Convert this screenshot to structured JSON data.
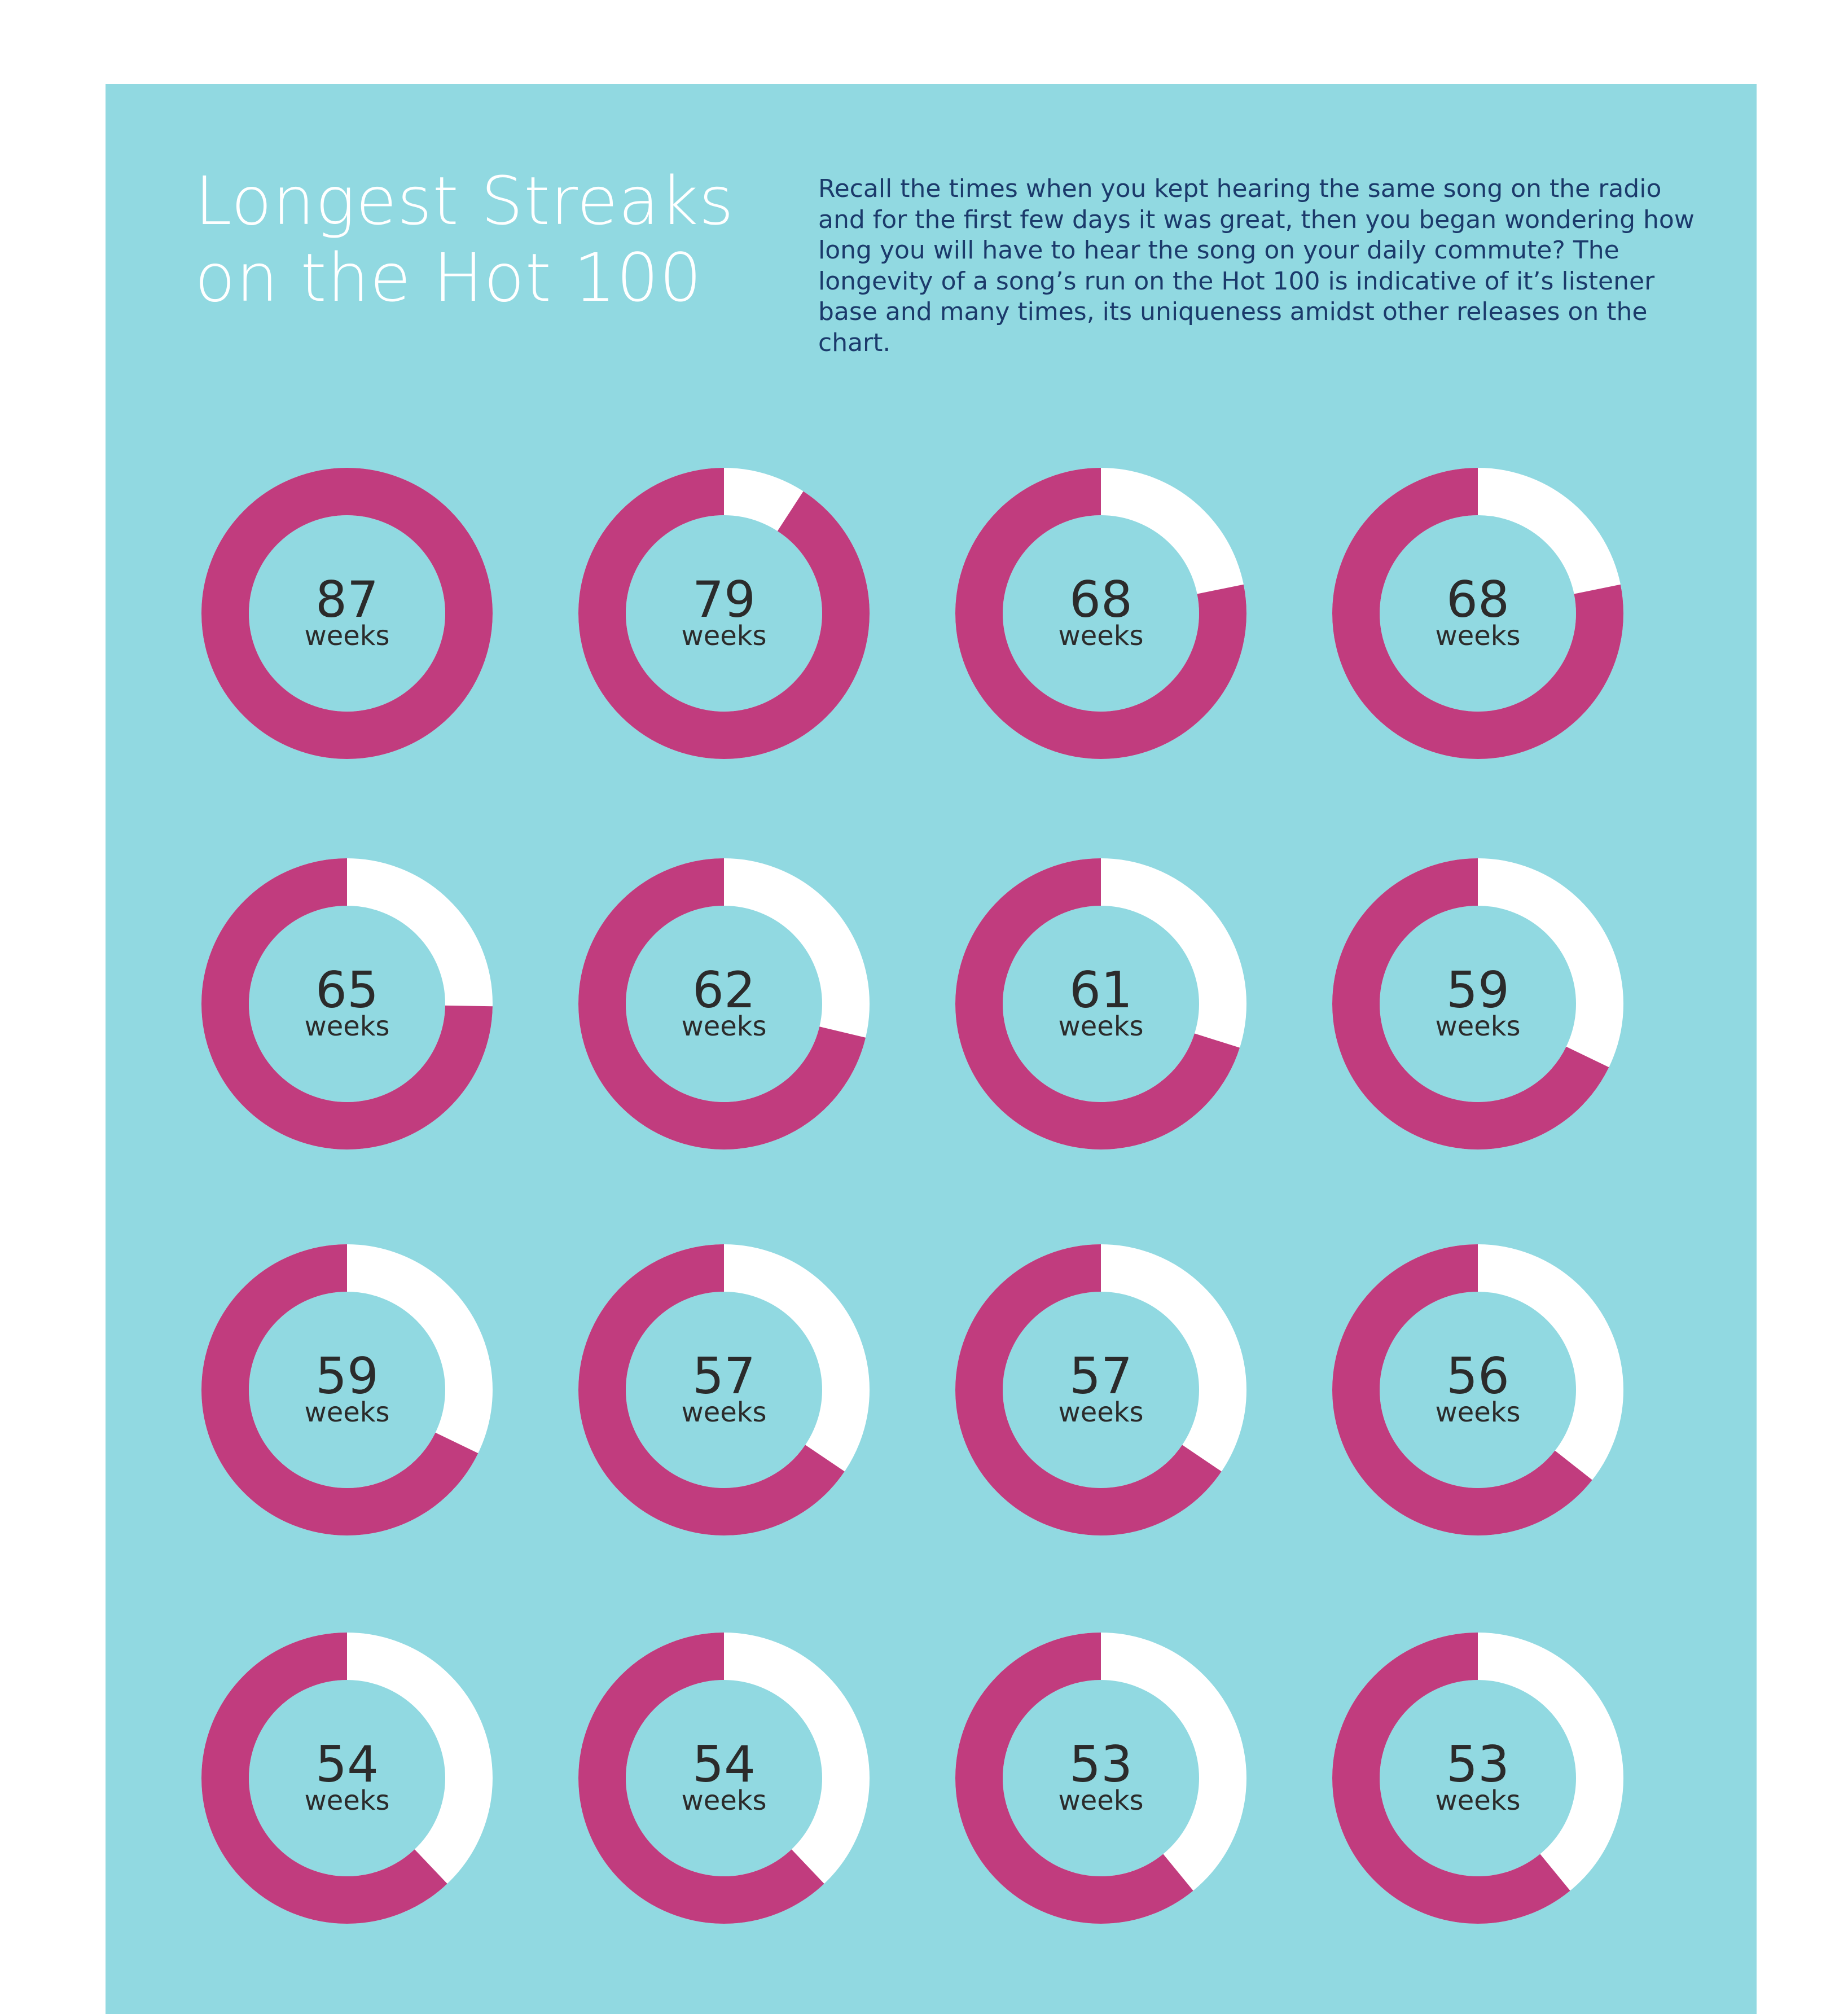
{
  "colors": {
    "background": "#ffffff",
    "panel": "#91d9e1",
    "filled": "#c13c7e",
    "remaining": "#ffffff",
    "title": "#ffffff",
    "intro_text": "#1b3a6b",
    "value_text": "#2b2b2b"
  },
  "title_lines": [
    "Longest Streaks",
    "on the Hot 100"
  ],
  "intro": "Recall the times when you kept hearing the same song on the radio and for the first few days it was great, then you began wondering how long you will have to hear the song on your daily commute? The longevity of a song’s run on the Hot 100 is indicative of it’s listener base and many times, its uniqueness amidst other releases on the chart.",
  "chart_data": {
    "type": "donut",
    "title": "Longest Streaks on the Hot 100",
    "unit": "weeks",
    "max": 87,
    "values": [
      87,
      79,
      68,
      68,
      65,
      62,
      61,
      59,
      59,
      57,
      57,
      56,
      54,
      54,
      53,
      53
    ]
  }
}
